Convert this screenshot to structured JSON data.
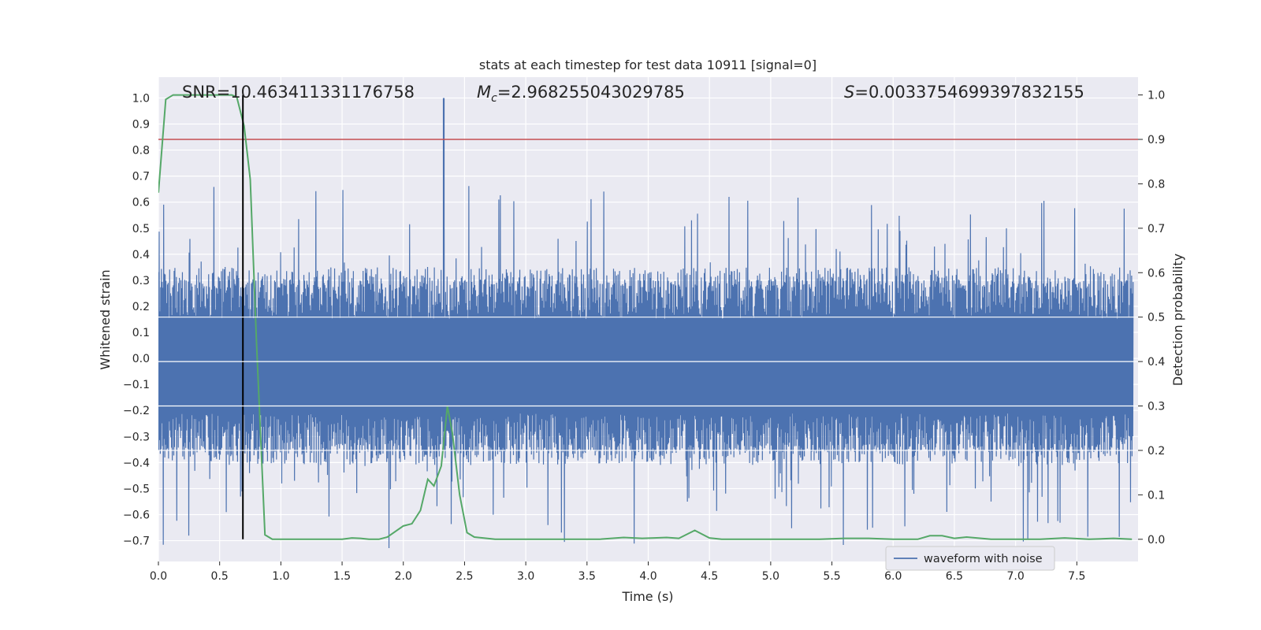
{
  "chart_data": {
    "type": "line",
    "title": "stats at each timestep for test data 10911 [signal=0]",
    "xlabel": "Time (s)",
    "ylabel_left": "Whitened strain",
    "ylabel_right": "Detection probability",
    "xlim": [
      0.0,
      8.0
    ],
    "ylim_left": [
      -0.78,
      1.08
    ],
    "ylim_right": [
      -0.05,
      1.04
    ],
    "x_ticks": [
      "0.0",
      "0.5",
      "1.0",
      "1.5",
      "2.0",
      "2.5",
      "3.0",
      "3.5",
      "4.0",
      "4.5",
      "5.0",
      "5.5",
      "6.0",
      "6.5",
      "7.0",
      "7.5"
    ],
    "x_tick_values": [
      0.0,
      0.5,
      1.0,
      1.5,
      2.0,
      2.5,
      3.0,
      3.5,
      4.0,
      4.5,
      5.0,
      5.5,
      6.0,
      6.5,
      7.0,
      7.5
    ],
    "left_ticks": [
      "1.0",
      "0.9",
      "0.8",
      "0.7",
      "0.6",
      "0.5",
      "0.4",
      "0.3",
      "0.2",
      "0.1",
      "0.0",
      "−0.1",
      "−0.2",
      "−0.3",
      "−0.4",
      "−0.5",
      "−0.6",
      "−0.7"
    ],
    "left_tick_values": [
      1.0,
      0.9,
      0.8,
      0.7,
      0.6,
      0.5,
      0.4,
      0.3,
      0.2,
      0.1,
      0.0,
      -0.1,
      -0.2,
      -0.3,
      -0.4,
      -0.5,
      -0.6,
      -0.7
    ],
    "right_ticks": [
      "1.0",
      "0.9",
      "0.8",
      "0.7",
      "0.6",
      "0.5",
      "0.4",
      "0.3",
      "0.2",
      "0.1",
      "0.0"
    ],
    "right_tick_values": [
      1.0,
      0.9,
      0.8,
      0.7,
      0.6,
      0.5,
      0.4,
      0.3,
      0.2,
      0.1,
      0.0
    ],
    "grid": true,
    "legend": {
      "placement": "lower-right",
      "entries": [
        "waveform with noise"
      ]
    },
    "annotations": {
      "snr": "SNR=10.463411331176758",
      "mc_symbol": "M",
      "mc_sub": "c",
      "mc_value": "=2.968255043029785",
      "s_symbol": "S",
      "s_value": "=0.0033754699397832155"
    },
    "threshold": {
      "axis": "right",
      "y": 0.9
    },
    "marker_time": 0.69,
    "strain_spike": {
      "x": 2.33,
      "y": 1.0
    },
    "series": [
      {
        "name": "waveform with noise",
        "axis": "left",
        "kind": "noise",
        "center": -0.03,
        "core_amplitude": 0.33,
        "max_amplitude": 0.7
      },
      {
        "axis": "right",
        "kind": "line",
        "x": [
          0.0,
          0.06,
          0.12,
          0.2,
          0.3,
          0.4,
          0.5,
          0.6,
          0.64,
          0.7,
          0.75,
          0.8,
          0.87,
          0.93,
          1.0,
          1.1,
          1.2,
          1.3,
          1.4,
          1.5,
          1.58,
          1.65,
          1.72,
          1.8,
          1.87,
          2.0,
          2.07,
          2.14,
          2.2,
          2.25,
          2.31,
          2.36,
          2.4,
          2.46,
          2.52,
          2.58,
          2.65,
          2.75,
          2.9,
          3.0,
          3.2,
          3.4,
          3.6,
          3.8,
          3.95,
          4.05,
          4.15,
          4.25,
          4.38,
          4.5,
          4.6,
          4.8,
          5.0,
          5.2,
          5.4,
          5.6,
          5.8,
          6.0,
          6.2,
          6.3,
          6.4,
          6.5,
          6.6,
          6.8,
          7.0,
          7.2,
          7.4,
          7.6,
          7.8,
          7.95
        ],
        "y": [
          0.78,
          0.99,
          1.0,
          1.0,
          1.0,
          1.0,
          1.0,
          1.0,
          0.995,
          0.93,
          0.81,
          0.45,
          0.01,
          0.0,
          0.0,
          0.0,
          0.0,
          0.0,
          0.0,
          0.0,
          0.003,
          0.002,
          0.0,
          0.0,
          0.005,
          0.03,
          0.035,
          0.065,
          0.135,
          0.12,
          0.165,
          0.3,
          0.24,
          0.1,
          0.015,
          0.005,
          0.003,
          0.0,
          0.0,
          0.0,
          0.0,
          0.0,
          0.0,
          0.004,
          0.002,
          0.003,
          0.004,
          0.002,
          0.02,
          0.003,
          0.0,
          0.0,
          0.0,
          0.0,
          0.0,
          0.002,
          0.002,
          0.0,
          0.0,
          0.008,
          0.008,
          0.002,
          0.005,
          0.0,
          0.0,
          0.0,
          0.003,
          0.0,
          0.002,
          0.0
        ]
      }
    ]
  },
  "colors": {
    "background": "#eaeaf2",
    "grid": "#ffffff",
    "strain": "#4c72b0",
    "probability": "#55a868",
    "threshold": "#c44e52",
    "marker": "#000000",
    "text": "#262626"
  }
}
